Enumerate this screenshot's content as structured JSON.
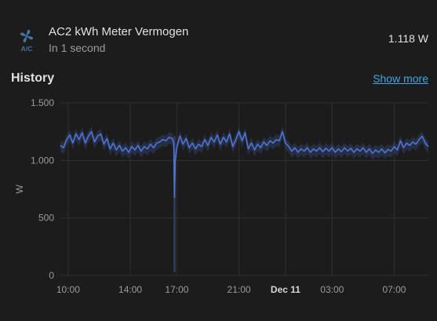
{
  "entity": {
    "icon": "air-conditioner-icon",
    "name": "AC2 kWh Meter Vermogen",
    "subtitle": "In 1 second",
    "state": "1.118 W"
  },
  "history": {
    "title": "History",
    "show_more": "Show more"
  },
  "colors": {
    "background": "#1c1c1c",
    "icon": "#44739e",
    "series": "#4f74d6",
    "band": "#2f3f63",
    "link": "#3ea6e6",
    "grid": "#303030"
  },
  "chart_data": {
    "type": "line",
    "ylabel": "W",
    "ylim": [
      0,
      1500
    ],
    "y_ticks": [
      {
        "value": 0,
        "label": "0"
      },
      {
        "value": 500,
        "label": "500"
      },
      {
        "value": 1000,
        "label": "1.000"
      },
      {
        "value": 1500,
        "label": "1.500"
      }
    ],
    "x_ticks": [
      {
        "hour": 10,
        "label": "10:00",
        "bold": false
      },
      {
        "hour": 14,
        "label": "14:00",
        "bold": false
      },
      {
        "hour": 17,
        "label": "17:00",
        "bold": false
      },
      {
        "hour": 21,
        "label": "21:00",
        "bold": false
      },
      {
        "hour": 24,
        "label": "Dec 11",
        "bold": true
      },
      {
        "hour": 27,
        "label": "03:00",
        "bold": false
      },
      {
        "hour": 31,
        "label": "07:00",
        "bold": false
      }
    ],
    "xlim_hours": [
      9.5,
      33.2
    ],
    "grid": true,
    "series": [
      {
        "points": [
          [
            9.5,
            1130
          ],
          [
            9.7,
            1110
          ],
          [
            9.9,
            1180
          ],
          [
            10.1,
            1220
          ],
          [
            10.3,
            1150
          ],
          [
            10.5,
            1230
          ],
          [
            10.7,
            1180
          ],
          [
            10.9,
            1240
          ],
          [
            11.1,
            1150
          ],
          [
            11.3,
            1210
          ],
          [
            11.5,
            1250
          ],
          [
            11.7,
            1160
          ],
          [
            11.9,
            1210
          ],
          [
            12.1,
            1230
          ],
          [
            12.3,
            1140
          ],
          [
            12.5,
            1190
          ],
          [
            12.7,
            1100
          ],
          [
            12.9,
            1150
          ],
          [
            13.1,
            1090
          ],
          [
            13.3,
            1130
          ],
          [
            13.5,
            1080
          ],
          [
            13.7,
            1110
          ],
          [
            13.9,
            1070
          ],
          [
            14.1,
            1120
          ],
          [
            14.3,
            1090
          ],
          [
            14.5,
            1130
          ],
          [
            14.7,
            1080
          ],
          [
            14.9,
            1120
          ],
          [
            15.1,
            1100
          ],
          [
            15.3,
            1140
          ],
          [
            15.5,
            1110
          ],
          [
            15.7,
            1150
          ],
          [
            15.9,
            1160
          ],
          [
            16.1,
            1180
          ],
          [
            16.3,
            1170
          ],
          [
            16.5,
            1200
          ],
          [
            16.7,
            1190
          ],
          [
            16.8,
            1150
          ],
          [
            16.85,
            680
          ],
          [
            16.9,
            1000
          ],
          [
            17.0,
            1120
          ],
          [
            17.2,
            1210
          ],
          [
            17.4,
            1140
          ],
          [
            17.6,
            1190
          ],
          [
            17.8,
            1110
          ],
          [
            18.0,
            1150
          ],
          [
            18.2,
            1100
          ],
          [
            18.4,
            1140
          ],
          [
            18.6,
            1120
          ],
          [
            18.8,
            1180
          ],
          [
            19.0,
            1130
          ],
          [
            19.2,
            1200
          ],
          [
            19.4,
            1160
          ],
          [
            19.6,
            1220
          ],
          [
            19.8,
            1140
          ],
          [
            20.0,
            1200
          ],
          [
            20.2,
            1160
          ],
          [
            20.4,
            1230
          ],
          [
            20.6,
            1120
          ],
          [
            20.8,
            1180
          ],
          [
            21.0,
            1250
          ],
          [
            21.2,
            1170
          ],
          [
            21.4,
            1240
          ],
          [
            21.6,
            1100
          ],
          [
            21.8,
            1150
          ],
          [
            22.0,
            1090
          ],
          [
            22.2,
            1140
          ],
          [
            22.4,
            1110
          ],
          [
            22.6,
            1160
          ],
          [
            22.8,
            1130
          ],
          [
            23.0,
            1170
          ],
          [
            23.2,
            1150
          ],
          [
            23.4,
            1180
          ],
          [
            23.6,
            1170
          ],
          [
            23.8,
            1250
          ],
          [
            24.0,
            1150
          ],
          [
            24.2,
            1120
          ],
          [
            24.4,
            1080
          ],
          [
            24.6,
            1110
          ],
          [
            24.8,
            1070
          ],
          [
            25.0,
            1100
          ],
          [
            25.2,
            1080
          ],
          [
            25.4,
            1110
          ],
          [
            25.6,
            1070
          ],
          [
            25.8,
            1100
          ],
          [
            26.0,
            1080
          ],
          [
            26.2,
            1110
          ],
          [
            26.4,
            1075
          ],
          [
            26.6,
            1105
          ],
          [
            26.8,
            1080
          ],
          [
            27.0,
            1110
          ],
          [
            27.2,
            1070
          ],
          [
            27.4,
            1100
          ],
          [
            27.6,
            1075
          ],
          [
            27.8,
            1110
          ],
          [
            28.0,
            1080
          ],
          [
            28.2,
            1105
          ],
          [
            28.4,
            1070
          ],
          [
            28.6,
            1100
          ],
          [
            28.8,
            1080
          ],
          [
            29.0,
            1110
          ],
          [
            29.2,
            1070
          ],
          [
            29.4,
            1100
          ],
          [
            29.6,
            1060
          ],
          [
            29.8,
            1090
          ],
          [
            30.0,
            1070
          ],
          [
            30.2,
            1100
          ],
          [
            30.4,
            1065
          ],
          [
            30.6,
            1095
          ],
          [
            30.8,
            1080
          ],
          [
            31.0,
            1120
          ],
          [
            31.2,
            1090
          ],
          [
            31.4,
            1170
          ],
          [
            31.6,
            1110
          ],
          [
            31.8,
            1150
          ],
          [
            32.0,
            1130
          ],
          [
            32.2,
            1160
          ],
          [
            32.4,
            1140
          ],
          [
            32.6,
            1180
          ],
          [
            32.8,
            1210
          ],
          [
            33.0,
            1150
          ],
          [
            33.2,
            1118
          ]
        ],
        "spikes": [
          {
            "hour": 16.85,
            "low": 30,
            "high": 1210
          }
        ]
      }
    ]
  }
}
